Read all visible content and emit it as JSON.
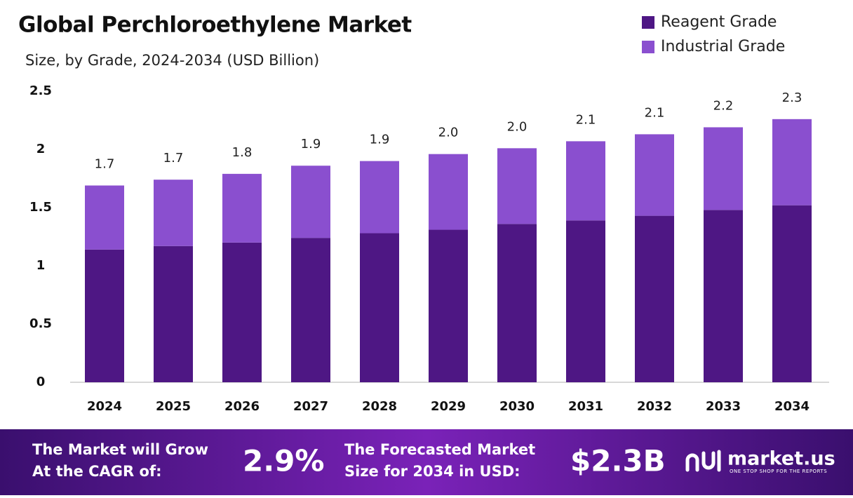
{
  "chart_data": {
    "type": "stacked-bar",
    "title": "Global Perchloroethylene Market",
    "subtitle": "Size, by Grade, 2024-2034 (USD Billion)",
    "categories": [
      "2024",
      "2025",
      "2026",
      "2027",
      "2028",
      "2029",
      "2030",
      "2031",
      "2032",
      "2033",
      "2034"
    ],
    "series": [
      {
        "name": "Reagent Grade",
        "color": "#4e1784",
        "values": [
          1.14,
          1.17,
          1.2,
          1.24,
          1.28,
          1.31,
          1.36,
          1.39,
          1.43,
          1.48,
          1.52
        ]
      },
      {
        "name": "Industrial Grade",
        "color": "#8a4fcf",
        "values": [
          0.55,
          0.57,
          0.59,
          0.62,
          0.62,
          0.65,
          0.65,
          0.68,
          0.7,
          0.71,
          0.74
        ]
      }
    ],
    "total_labels": [
      "1.7",
      "1.7",
      "1.8",
      "1.9",
      "1.9",
      "2.0",
      "2.0",
      "2.1",
      "2.1",
      "2.2",
      "2.3"
    ],
    "ylim": [
      0,
      2.5
    ],
    "yticks": [
      0,
      0.5,
      1,
      1.5,
      2,
      2.5
    ],
    "grid": false,
    "legend": "top-right"
  },
  "footer": {
    "cagr_text": [
      "The Market will Grow",
      "At the CAGR of:"
    ],
    "cagr_value": "2.9%",
    "forecast_text": [
      "The Forecasted Market",
      "Size for 2034 in USD:"
    ],
    "forecast_value": "$2.3B",
    "brand": "market.us",
    "tagline": "ONE STOP SHOP FOR THE REPORTS"
  }
}
